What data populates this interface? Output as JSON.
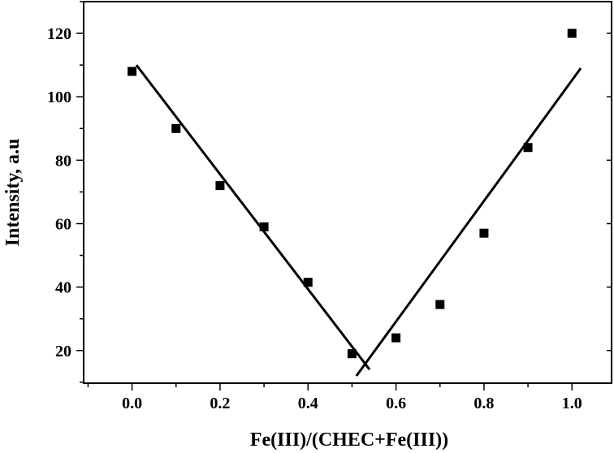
{
  "chart_data": {
    "type": "scatter",
    "xlabel": "Fe(III)/(CHEC+Fe(III))",
    "ylabel": "Intensity, a.u",
    "xlim": [
      -0.11,
      1.09
    ],
    "ylim": [
      9.7,
      130
    ],
    "xticks": [
      0.0,
      0.2,
      0.4,
      0.6,
      0.8,
      1.0
    ],
    "xtick_labels": [
      "0.0",
      "0.2",
      "0.4",
      "0.6",
      "0.8",
      "1.0"
    ],
    "yticks": [
      20,
      40,
      60,
      80,
      100,
      120
    ],
    "ytick_labels": [
      "20",
      "40",
      "60",
      "80",
      "100",
      "120"
    ],
    "grid": false,
    "series": [
      {
        "x": [
          0.0,
          0.1,
          0.2,
          0.3,
          0.4,
          0.5,
          0.6,
          0.7,
          0.8,
          0.9,
          1.0
        ],
        "y": [
          108,
          90,
          72,
          59,
          41.5,
          19,
          24,
          34.5,
          57,
          84,
          120
        ],
        "marker": "square",
        "color": "#000000"
      }
    ],
    "fit_lines": [
      {
        "x": [
          0.01,
          0.54
        ],
        "y": [
          110,
          14
        ]
      },
      {
        "x": [
          0.51,
          1.02
        ],
        "y": [
          12,
          109
        ]
      }
    ]
  }
}
